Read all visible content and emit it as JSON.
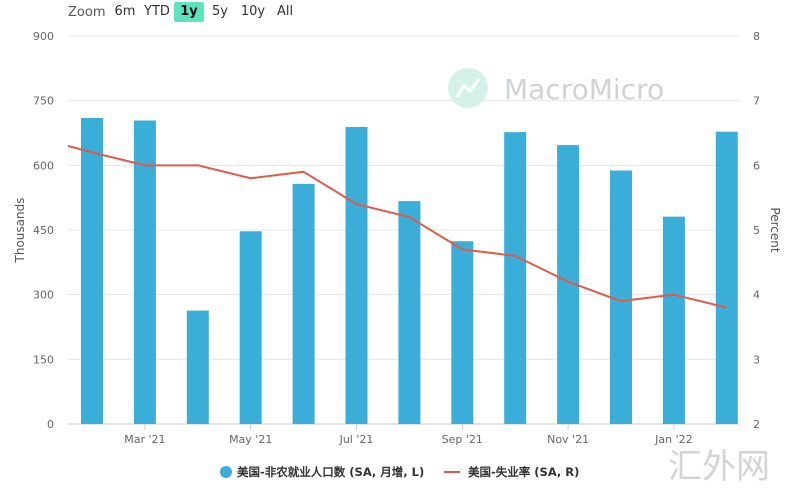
{
  "zoom": {
    "label": "Zoom",
    "options": [
      "6m",
      "YTD",
      "1y",
      "5y",
      "10y",
      "All"
    ],
    "active": "1y"
  },
  "watermark": "MacroMicro",
  "corner_watermark": "汇外网",
  "colors": {
    "bar": "#3badd9",
    "line": "#e05a47",
    "grid": "#e6e6e6",
    "zoom_active": "#5fe3be"
  },
  "chart_data": {
    "type": "bar",
    "x_labels": [
      "Mar '21",
      "May '21",
      "Jul '21",
      "Sep '21",
      "Nov '21",
      "Jan '22"
    ],
    "months": [
      "2021-02",
      "2021-03",
      "2021-04",
      "2021-05",
      "2021-06",
      "2021-07",
      "2021-08",
      "2021-09",
      "2021-10",
      "2021-11",
      "2021-12",
      "2022-01",
      "2022-02"
    ],
    "ylabel": "Thousands",
    "ylabel_right": "Percent",
    "ylim": [
      0,
      900
    ],
    "yticks": [
      0,
      150,
      300,
      450,
      600,
      750,
      900
    ],
    "ylim_right": [
      2,
      8
    ],
    "yticks_right": [
      2,
      3,
      4,
      5,
      6,
      7,
      8
    ],
    "grid": true,
    "legend_position": "bottom-center",
    "series": [
      {
        "name": "美国-非农就业人口数 (SA, 月增, L)",
        "type": "bar",
        "axis": "left",
        "values": [
          710,
          704,
          263,
          447,
          557,
          689,
          517,
          424,
          677,
          647,
          588,
          481,
          678
        ]
      },
      {
        "name": "美国-失业率 (SA, R)",
        "type": "line",
        "axis": "right",
        "start_value": 6.3,
        "values": [
          6.2,
          6.0,
          6.0,
          5.8,
          5.9,
          5.4,
          5.2,
          4.7,
          4.6,
          4.2,
          3.9,
          4.0,
          3.8
        ]
      }
    ]
  }
}
